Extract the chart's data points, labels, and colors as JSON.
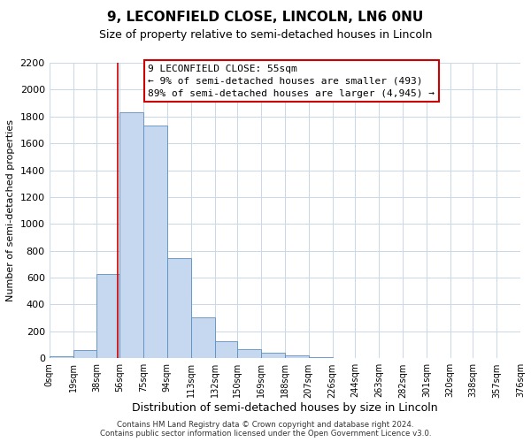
{
  "title": "9, LECONFIELD CLOSE, LINCOLN, LN6 0NU",
  "subtitle": "Size of property relative to semi-detached houses in Lincoln",
  "xlabel": "Distribution of semi-detached houses by size in Lincoln",
  "ylabel": "Number of semi-detached properties",
  "bin_edges": [
    0,
    19,
    38,
    56,
    75,
    94,
    113,
    132,
    150,
    169,
    188,
    207,
    226,
    244,
    263,
    282,
    301,
    320,
    338,
    357,
    376
  ],
  "bin_counts": [
    15,
    60,
    630,
    1830,
    1730,
    745,
    305,
    130,
    70,
    40,
    20,
    10,
    5,
    2,
    1,
    0,
    0,
    0,
    0,
    0
  ],
  "bar_color": "#c5d8f0",
  "bar_edge_color": "#5a8fc0",
  "property_line_x": 55,
  "property_line_color": "#cc0000",
  "annotation_box_edge_color": "#cc0000",
  "annotation_lines": [
    "9 LECONFIELD CLOSE: 55sqm",
    "← 9% of semi-detached houses are smaller (493)",
    "89% of semi-detached houses are larger (4,945) →"
  ],
  "ylim": [
    0,
    2200
  ],
  "ytick_step": 200,
  "xtick_labels": [
    "0sqm",
    "19sqm",
    "38sqm",
    "56sqm",
    "75sqm",
    "94sqm",
    "113sqm",
    "132sqm",
    "150sqm",
    "169sqm",
    "188sqm",
    "207sqm",
    "226sqm",
    "244sqm",
    "263sqm",
    "282sqm",
    "301sqm",
    "320sqm",
    "338sqm",
    "357sqm",
    "376sqm"
  ],
  "footnote1": "Contains HM Land Registry data © Crown copyright and database right 2024.",
  "footnote2": "Contains public sector information licensed under the Open Government Licence v3.0.",
  "grid_color": "#c8d8ea",
  "background_color": "#ffffff",
  "title_fontsize": 11,
  "subtitle_fontsize": 9,
  "xlabel_fontsize": 9,
  "ylabel_fontsize": 8,
  "ytick_fontsize": 8,
  "xtick_fontsize": 7,
  "annot_fontsize": 8
}
